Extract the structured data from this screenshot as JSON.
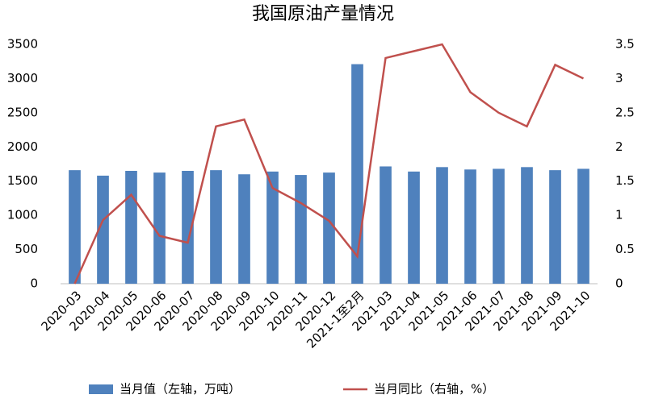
{
  "chart_data": {
    "type": "combo",
    "title": "我国原油产量情况",
    "categories": [
      "2020-03",
      "2020-04",
      "2020-05",
      "2020-06",
      "2020-07",
      "2020-08",
      "2020-09",
      "2020-10",
      "2020-11",
      "2020-12",
      "2021-1至2月",
      "2021-03",
      "2021-04",
      "2021-05",
      "2021-06",
      "2021-07",
      "2021-08",
      "2021-09",
      "2021-10"
    ],
    "series": [
      {
        "name": "当月值（左轴，万吨）",
        "type": "bar",
        "color": "#4f81bd",
        "values": [
          1660,
          1580,
          1650,
          1625,
          1650,
          1660,
          1600,
          1640,
          1590,
          1625,
          3210,
          1715,
          1640,
          1705,
          1670,
          1680,
          1705,
          1660,
          1680
        ]
      },
      {
        "name": "当月同比（右轴，%）",
        "type": "line",
        "axis": "y2",
        "color": "#c0504d",
        "values": [
          0,
          0.93,
          1.3,
          0.7,
          0.6,
          2.3,
          2.4,
          1.4,
          1.18,
          0.92,
          0.4,
          3.3,
          3.4,
          3.5,
          2.8,
          2.5,
          2.3,
          3.2,
          3.0
        ]
      }
    ],
    "ylim": [
      0,
      3500
    ],
    "yticks": [
      0,
      500,
      1000,
      1500,
      2000,
      2500,
      3000,
      3500
    ],
    "y2lim": [
      0,
      3.5
    ],
    "y2ticks": [
      0,
      0.5,
      1,
      1.5,
      2,
      2.5,
      3,
      3.5
    ],
    "grid": false,
    "legend": "bottom"
  }
}
